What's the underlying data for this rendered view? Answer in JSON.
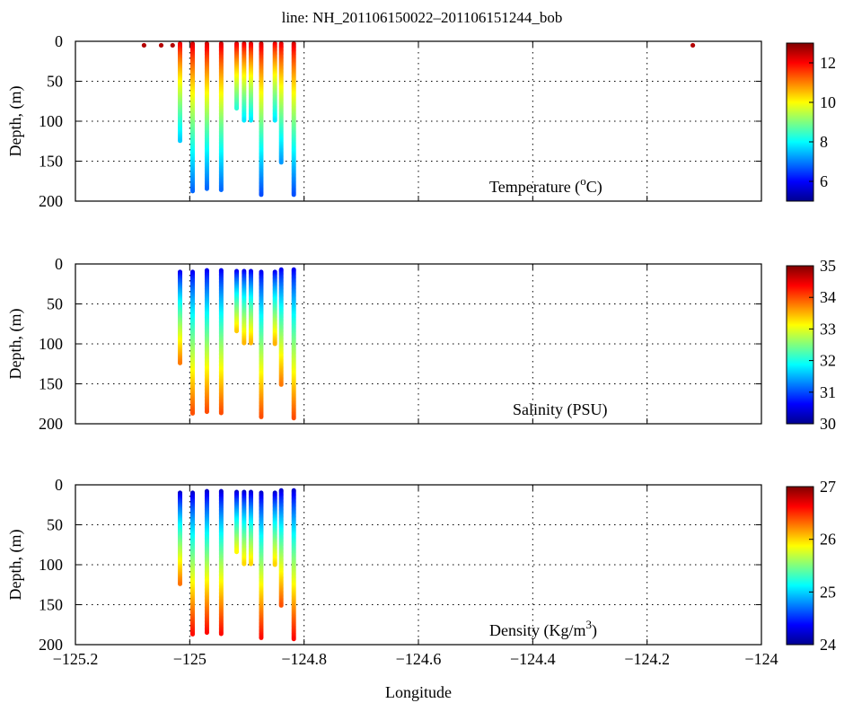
{
  "figure": {
    "title": "line: NH_201106150022–201106151244_bob",
    "xlabel": "Longitude",
    "x_ticks": [
      "−125.2",
      "−125",
      "−124.8",
      "−124.6",
      "−124.4",
      "−124.2",
      "−124"
    ]
  },
  "chart_data": [
    {
      "type": "scatter",
      "variable": "temperature",
      "label_text": "Temperature (",
      "label_unit": "C)",
      "label_sup": "o",
      "ylabel": "Depth, (m)",
      "xlim": [
        -125.2,
        -124.0
      ],
      "ylim": [
        200,
        0
      ],
      "y_ticks": [
        "0",
        "50",
        "100",
        "150",
        "200"
      ],
      "grid": true,
      "colorbar": {
        "min": 5,
        "max": 13,
        "ticks": [
          "6",
          "8",
          "10",
          "12"
        ],
        "tick_values": [
          6,
          8,
          10,
          12
        ]
      },
      "casts": [
        {
          "lon": -124.12,
          "max_depth": 5,
          "surface": 12.6,
          "bottom": 12.6
        },
        {
          "lon": -125.08,
          "max_depth": 5,
          "surface": 12.6,
          "bottom": 12.6
        },
        {
          "lon": -125.05,
          "max_depth": 5,
          "surface": 12.6,
          "bottom": 12.6
        },
        {
          "lon": -125.03,
          "max_depth": 5,
          "surface": 12.6,
          "bottom": 12.6
        },
        {
          "lon": -125.017,
          "max_depth": 125,
          "surface": 12.2,
          "bottom": 7.6
        },
        {
          "lon": -124.995,
          "max_depth": 188,
          "surface": 12.4,
          "bottom": 6.8
        },
        {
          "lon": -124.97,
          "max_depth": 185,
          "surface": 12.4,
          "bottom": 6.8
        },
        {
          "lon": -124.945,
          "max_depth": 187,
          "surface": 12.4,
          "bottom": 6.8
        },
        {
          "lon": -124.918,
          "max_depth": 85,
          "surface": 12.3,
          "bottom": 8.3
        },
        {
          "lon": -124.905,
          "max_depth": 100,
          "surface": 12.3,
          "bottom": 7.8
        },
        {
          "lon": -124.893,
          "max_depth": 100,
          "surface": 12.3,
          "bottom": 7.8
        },
        {
          "lon": -124.875,
          "max_depth": 192,
          "surface": 12.4,
          "bottom": 6.6
        },
        {
          "lon": -124.851,
          "max_depth": 100,
          "surface": 12.2,
          "bottom": 7.8
        },
        {
          "lon": -124.84,
          "max_depth": 152,
          "surface": 12.3,
          "bottom": 7.2
        },
        {
          "lon": -124.818,
          "max_depth": 193,
          "surface": 12.4,
          "bottom": 6.6
        }
      ]
    },
    {
      "type": "scatter",
      "variable": "salinity",
      "label_text": "Salinity (PSU)",
      "ylabel": "Depth, (m)",
      "xlim": [
        -125.2,
        -124.0
      ],
      "ylim": [
        200,
        0
      ],
      "y_ticks": [
        "0",
        "50",
        "100",
        "150",
        "200"
      ],
      "grid": true,
      "colorbar": {
        "min": 30,
        "max": 35,
        "ticks": [
          "30",
          "31",
          "32",
          "33",
          "34",
          "35"
        ],
        "tick_values": [
          30,
          31,
          32,
          33,
          34,
          35
        ]
      },
      "casts": [
        {
          "lon": -125.017,
          "min_depth": 10,
          "max_depth": 125,
          "surface": 30.5,
          "bottom": 33.8
        },
        {
          "lon": -124.995,
          "min_depth": 10,
          "max_depth": 188,
          "surface": 30.5,
          "bottom": 34.0
        },
        {
          "lon": -124.97,
          "min_depth": 8,
          "max_depth": 185,
          "surface": 30.5,
          "bottom": 34.0
        },
        {
          "lon": -124.945,
          "min_depth": 8,
          "max_depth": 187,
          "surface": 30.5,
          "bottom": 34.0
        },
        {
          "lon": -124.918,
          "min_depth": 9,
          "max_depth": 85,
          "surface": 30.5,
          "bottom": 33.4
        },
        {
          "lon": -124.905,
          "min_depth": 9,
          "max_depth": 100,
          "surface": 30.5,
          "bottom": 33.5
        },
        {
          "lon": -124.893,
          "min_depth": 9,
          "max_depth": 100,
          "surface": 30.5,
          "bottom": 33.5
        },
        {
          "lon": -124.875,
          "min_depth": 10,
          "max_depth": 192,
          "surface": 30.5,
          "bottom": 34.0
        },
        {
          "lon": -124.851,
          "min_depth": 10,
          "max_depth": 100,
          "surface": 30.5,
          "bottom": 33.5
        },
        {
          "lon": -124.84,
          "min_depth": 7,
          "max_depth": 152,
          "surface": 30.5,
          "bottom": 33.8
        },
        {
          "lon": -124.818,
          "min_depth": 7,
          "max_depth": 193,
          "surface": 30.5,
          "bottom": 34.0
        }
      ]
    },
    {
      "type": "scatter",
      "variable": "density",
      "label_text": "Density (Kg/m",
      "label_sup": "3",
      "label_close": ")",
      "ylabel": "Depth, (m)",
      "xlim": [
        -125.2,
        -124.0
      ],
      "ylim": [
        200,
        0
      ],
      "y_ticks": [
        "0",
        "50",
        "100",
        "150",
        "200"
      ],
      "grid": true,
      "colorbar": {
        "min": 24,
        "max": 27,
        "ticks": [
          "24",
          "25",
          "26",
          "27"
        ],
        "tick_values": [
          24,
          25,
          26,
          27
        ]
      },
      "casts": [
        {
          "lon": -125.017,
          "min_depth": 10,
          "max_depth": 125,
          "surface": 24.2,
          "bottom": 26.3
        },
        {
          "lon": -124.995,
          "min_depth": 10,
          "max_depth": 188,
          "surface": 24.2,
          "bottom": 26.6
        },
        {
          "lon": -124.97,
          "min_depth": 8,
          "max_depth": 185,
          "surface": 24.2,
          "bottom": 26.6
        },
        {
          "lon": -124.945,
          "min_depth": 8,
          "max_depth": 187,
          "surface": 24.2,
          "bottom": 26.6
        },
        {
          "lon": -124.918,
          "min_depth": 9,
          "max_depth": 85,
          "surface": 24.2,
          "bottom": 25.9
        },
        {
          "lon": -124.905,
          "min_depth": 9,
          "max_depth": 100,
          "surface": 24.2,
          "bottom": 26.0
        },
        {
          "lon": -124.893,
          "min_depth": 9,
          "max_depth": 100,
          "surface": 24.2,
          "bottom": 26.0
        },
        {
          "lon": -124.875,
          "min_depth": 10,
          "max_depth": 192,
          "surface": 24.2,
          "bottom": 26.6
        },
        {
          "lon": -124.851,
          "min_depth": 10,
          "max_depth": 100,
          "surface": 24.2,
          "bottom": 26.0
        },
        {
          "lon": -124.84,
          "min_depth": 7,
          "max_depth": 152,
          "surface": 24.2,
          "bottom": 26.4
        },
        {
          "lon": -124.818,
          "min_depth": 7,
          "max_depth": 193,
          "surface": 24.2,
          "bottom": 26.6
        }
      ]
    }
  ]
}
